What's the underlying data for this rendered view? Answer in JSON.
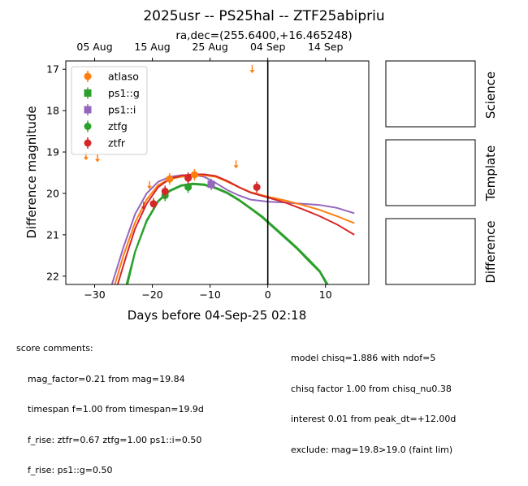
{
  "chart_data": {
    "type": "scatter",
    "title": "2025usr -- PS25hal -- ZTF25abipriu",
    "subtitle": "ra,dec=(255.6400,+16.465248)",
    "xlabel": "Days before 04-Sep-25 02:18",
    "ylabel": "Difference magnitude",
    "xlim": [
      -35,
      17.5
    ],
    "ylim": [
      22.2,
      16.8
    ],
    "x_ticks": [
      -30,
      -20,
      -10,
      0,
      10
    ],
    "x_tick_labels": [
      "−30",
      "−20",
      "−10",
      "0",
      "10"
    ],
    "y_ticks": [
      17,
      18,
      19,
      20,
      21,
      22
    ],
    "y_tick_labels": [
      "17",
      "18",
      "19",
      "20",
      "21",
      "22"
    ],
    "top_axis_ticks": [
      {
        "x": -30,
        "label": "05 Aug"
      },
      {
        "x": -20,
        "label": "15 Aug"
      },
      {
        "x": -10,
        "label": "25 Aug"
      },
      {
        "x": 0,
        "label": "04 Sep"
      },
      {
        "x": 10,
        "label": "14 Sep"
      }
    ],
    "vertical_line_x": 0,
    "legend_position": "top-left",
    "series": [
      {
        "name": "atlaso",
        "color": "#ff7f0e",
        "marker": "circle",
        "points": [
          [
            -17,
            19.65
          ],
          [
            -12.7,
            19.55
          ]
        ],
        "upper_limits": [
          [
            -31.5,
            19.1
          ],
          [
            -29.5,
            19.15
          ],
          [
            -20.5,
            19.8
          ],
          [
            -5.5,
            19.3
          ],
          [
            -2.7,
            17.0
          ]
        ]
      },
      {
        "name": "ps1::g",
        "color": "#2ca02c",
        "marker": "square",
        "points": [],
        "upper_limits": []
      },
      {
        "name": "ps1::i",
        "color": "#9467bd",
        "marker": "square",
        "points": [
          [
            -9.8,
            19.78
          ]
        ],
        "upper_limits": []
      },
      {
        "name": "ztfg",
        "color": "#2ca02c",
        "marker": "circle",
        "points": [
          [
            -17.8,
            20.05
          ],
          [
            -13.8,
            19.85
          ]
        ],
        "upper_limits": []
      },
      {
        "name": "ztfr",
        "color": "#d62728",
        "marker": "circle",
        "points": [
          [
            -19.8,
            20.25
          ],
          [
            -17.8,
            19.95
          ],
          [
            -13.8,
            19.63
          ],
          [
            -1.9,
            19.85
          ]
        ],
        "upper_limits": [
          [
            -21.5,
            20.3
          ]
        ]
      }
    ],
    "model_curves": [
      {
        "color": "#9467bd",
        "points": [
          [
            -27,
            22.2
          ],
          [
            -25,
            21.3
          ],
          [
            -23,
            20.5
          ],
          [
            -21,
            20.0
          ],
          [
            -19,
            19.72
          ],
          [
            -17,
            19.6
          ],
          [
            -15,
            19.56
          ],
          [
            -13,
            19.55
          ],
          [
            -11,
            19.6
          ],
          [
            -9,
            19.75
          ],
          [
            -7,
            19.92
          ],
          [
            -5,
            20.05
          ],
          [
            -3,
            20.15
          ],
          [
            0,
            20.2
          ],
          [
            3,
            20.22
          ],
          [
            6,
            20.25
          ],
          [
            9,
            20.28
          ],
          [
            12,
            20.35
          ],
          [
            15,
            20.48
          ]
        ]
      },
      {
        "color": "#ff7f0e",
        "points": [
          [
            -26.5,
            22.2
          ],
          [
            -25,
            21.5
          ],
          [
            -23,
            20.7
          ],
          [
            -21,
            20.15
          ],
          [
            -19,
            19.8
          ],
          [
            -17,
            19.65
          ],
          [
            -15,
            19.6
          ],
          [
            -13,
            19.57
          ],
          [
            -11,
            19.56
          ],
          [
            -9,
            19.6
          ],
          [
            -7,
            19.72
          ],
          [
            -5,
            19.85
          ],
          [
            -3,
            19.97
          ],
          [
            0,
            20.08
          ],
          [
            3,
            20.17
          ],
          [
            6,
            20.28
          ],
          [
            9,
            20.4
          ],
          [
            12,
            20.55
          ],
          [
            15,
            20.72
          ]
        ]
      },
      {
        "color": "#d62728",
        "points": [
          [
            -26,
            22.2
          ],
          [
            -24.5,
            21.5
          ],
          [
            -23,
            20.85
          ],
          [
            -21,
            20.25
          ],
          [
            -19,
            19.85
          ],
          [
            -17,
            19.65
          ],
          [
            -15,
            19.57
          ],
          [
            -13,
            19.54
          ],
          [
            -11,
            19.54
          ],
          [
            -9,
            19.58
          ],
          [
            -7,
            19.7
          ],
          [
            -5,
            19.85
          ],
          [
            -3,
            19.98
          ],
          [
            0,
            20.1
          ],
          [
            3,
            20.22
          ],
          [
            6,
            20.38
          ],
          [
            9,
            20.55
          ],
          [
            12,
            20.75
          ],
          [
            15,
            21.0
          ]
        ]
      },
      {
        "color": "#2ca02c",
        "points": [
          [
            -24.5,
            22.2
          ],
          [
            -23,
            21.4
          ],
          [
            -21,
            20.65
          ],
          [
            -19,
            20.18
          ],
          [
            -17,
            19.93
          ],
          [
            -15,
            19.8
          ],
          [
            -13,
            19.76
          ],
          [
            -11,
            19.78
          ],
          [
            -9,
            19.86
          ],
          [
            -7,
            19.98
          ],
          [
            -5,
            20.15
          ],
          [
            -3,
            20.35
          ],
          [
            -1,
            20.55
          ],
          [
            1,
            20.8
          ],
          [
            3,
            21.05
          ],
          [
            5,
            21.3
          ],
          [
            7,
            21.58
          ],
          [
            9,
            21.87
          ],
          [
            10.4,
            22.2
          ]
        ]
      },
      {
        "color": "#2ca02c",
        "points": [
          [
            -24.3,
            22.2
          ],
          [
            -23,
            21.42
          ],
          [
            -21,
            20.68
          ],
          [
            -19,
            20.2
          ],
          [
            -17,
            19.95
          ],
          [
            -15,
            19.82
          ],
          [
            -13,
            19.78
          ],
          [
            -11,
            19.8
          ],
          [
            -9,
            19.88
          ],
          [
            -7,
            20.0
          ],
          [
            -5,
            20.17
          ],
          [
            -3,
            20.37
          ],
          [
            -1,
            20.58
          ],
          [
            1,
            20.83
          ],
          [
            3,
            21.08
          ],
          [
            5,
            21.33
          ],
          [
            7,
            21.62
          ],
          [
            9,
            21.9
          ],
          [
            10.2,
            22.2
          ]
        ]
      }
    ]
  },
  "side_panels": [
    "Science",
    "Template",
    "Difference"
  ],
  "score_comments": {
    "heading": "score comments:",
    "left": [
      "mag_factor=0.21 from mag=19.84",
      "timespan f=1.00 from timespan=19.9d",
      "f_rise: ztfr=0.67 ztfg=1.00 ps1::i=0.50",
      "f_rise: ps1::g=0.50"
    ],
    "right": [
      "model chisq=1.886 with ndof=5",
      "chisq factor 1.00 from chisq_nu0.38",
      "interest 0.01 from peak_dt=+12.00d",
      "exclude: mag=19.8>19.0 (faint lim)"
    ]
  }
}
